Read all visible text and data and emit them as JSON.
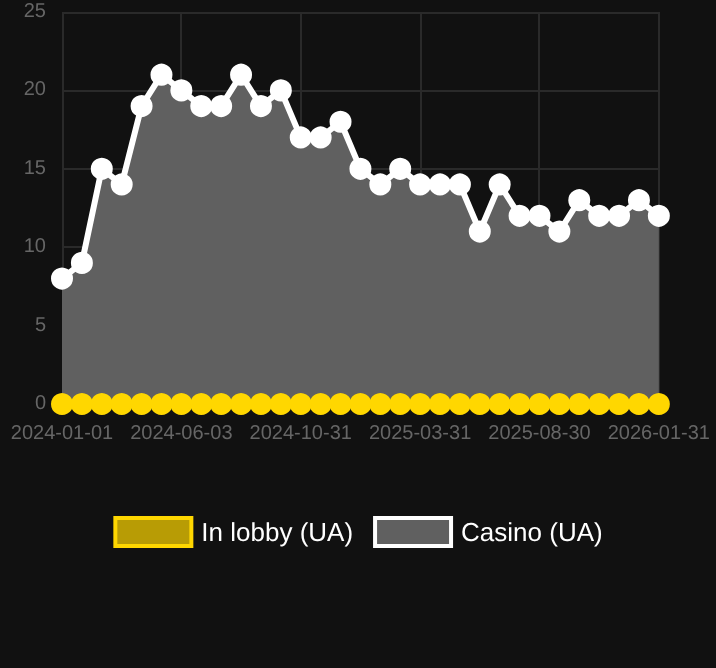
{
  "chart_data": {
    "type": "area",
    "categories": [
      "2024-01-01",
      null,
      null,
      null,
      null,
      null,
      "2024-06-03",
      null,
      null,
      null,
      null,
      null,
      "2024-10-31",
      null,
      null,
      null,
      null,
      null,
      "2025-03-31",
      null,
      null,
      null,
      null,
      null,
      "2025-08-30",
      null,
      null,
      null,
      null,
      null,
      "2026-01-31"
    ],
    "series": [
      {
        "name": "In lobby (UA)",
        "type": "line",
        "color": "#ffd700",
        "values": [
          0,
          0,
          0,
          0,
          0,
          0,
          0,
          0,
          0,
          0,
          0,
          0,
          0,
          0,
          0,
          0,
          0,
          0,
          0,
          0,
          0,
          0,
          0,
          0,
          0,
          0,
          0,
          0,
          0,
          0,
          0
        ]
      },
      {
        "name": "Casino (UA)",
        "color": "#ffffff",
        "values": [
          8,
          9,
          15,
          14,
          19,
          21,
          20,
          19,
          19,
          21,
          19,
          20,
          17,
          17,
          18,
          15,
          14,
          15,
          14,
          14,
          14,
          11,
          14,
          12,
          12,
          11,
          13,
          12,
          12,
          13,
          12
        ]
      }
    ],
    "ylim": [
      0,
      25
    ],
    "yticks": [
      0,
      5,
      10,
      15,
      20,
      25
    ],
    "grid": true,
    "legend": "bottom",
    "marker": "circle"
  }
}
